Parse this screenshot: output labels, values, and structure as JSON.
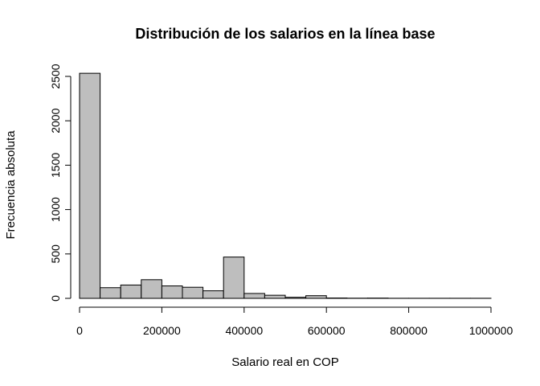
{
  "chart_data": {
    "type": "bar",
    "title": "Distribución de los salarios en la línea base",
    "xlabel": "Salario real en COP",
    "ylabel": "Frecuencia absoluta",
    "xlim": [
      0,
      1000000
    ],
    "ylim": [
      0,
      2500
    ],
    "bin_width": 50000,
    "bins": [
      {
        "x0": 0,
        "x1": 50000,
        "value": 2535
      },
      {
        "x0": 50000,
        "x1": 100000,
        "value": 120
      },
      {
        "x0": 100000,
        "x1": 150000,
        "value": 150
      },
      {
        "x0": 150000,
        "x1": 200000,
        "value": 210
      },
      {
        "x0": 200000,
        "x1": 250000,
        "value": 140
      },
      {
        "x0": 250000,
        "x1": 300000,
        "value": 125
      },
      {
        "x0": 300000,
        "x1": 350000,
        "value": 85
      },
      {
        "x0": 350000,
        "x1": 400000,
        "value": 465
      },
      {
        "x0": 400000,
        "x1": 450000,
        "value": 55
      },
      {
        "x0": 450000,
        "x1": 500000,
        "value": 35
      },
      {
        "x0": 500000,
        "x1": 550000,
        "value": 12
      },
      {
        "x0": 550000,
        "x1": 600000,
        "value": 30
      },
      {
        "x0": 600000,
        "x1": 650000,
        "value": 4
      },
      {
        "x0": 650000,
        "x1": 700000,
        "value": 2
      },
      {
        "x0": 700000,
        "x1": 750000,
        "value": 3
      },
      {
        "x0": 750000,
        "x1": 800000,
        "value": 1
      },
      {
        "x0": 800000,
        "x1": 850000,
        "value": 1
      },
      {
        "x0": 850000,
        "x1": 900000,
        "value": 1
      },
      {
        "x0": 900000,
        "x1": 950000,
        "value": 1
      },
      {
        "x0": 950000,
        "x1": 1000000,
        "value": 1
      }
    ],
    "x_ticks": [
      0,
      200000,
      400000,
      600000,
      800000,
      1000000
    ],
    "x_tick_labels": [
      "0",
      "200000",
      "400000",
      "600000",
      "800000",
      "1000000"
    ],
    "y_ticks": [
      0,
      500,
      1000,
      1500,
      2000,
      2500
    ],
    "y_tick_labels": [
      "0",
      "500",
      "1000",
      "1500",
      "2000",
      "2500"
    ],
    "bar_color": "#bebebe",
    "grid": false
  }
}
